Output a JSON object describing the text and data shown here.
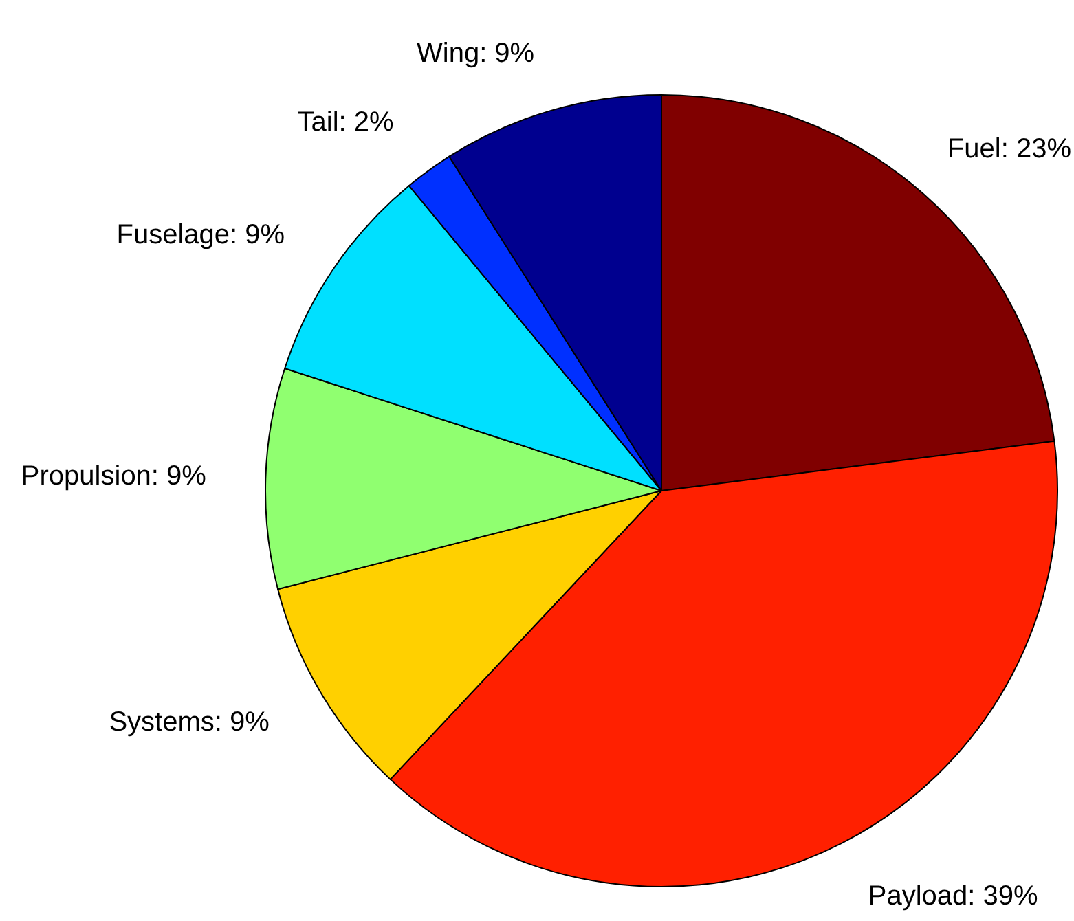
{
  "chart_data": {
    "type": "pie",
    "categories": [
      "Fuel",
      "Payload",
      "Systems",
      "Propulsion",
      "Fuselage",
      "Tail",
      "Wing"
    ],
    "values": [
      23,
      39,
      9,
      9,
      9,
      2,
      9
    ],
    "colors": [
      "#800000",
      "#ff2000",
      "#ffd000",
      "#90ff70",
      "#00e0ff",
      "#0030ff",
      "#00008f"
    ],
    "value_labels": [
      "23%",
      "39%",
      "9%",
      "9%",
      "9%",
      "2%",
      "9%"
    ]
  }
}
